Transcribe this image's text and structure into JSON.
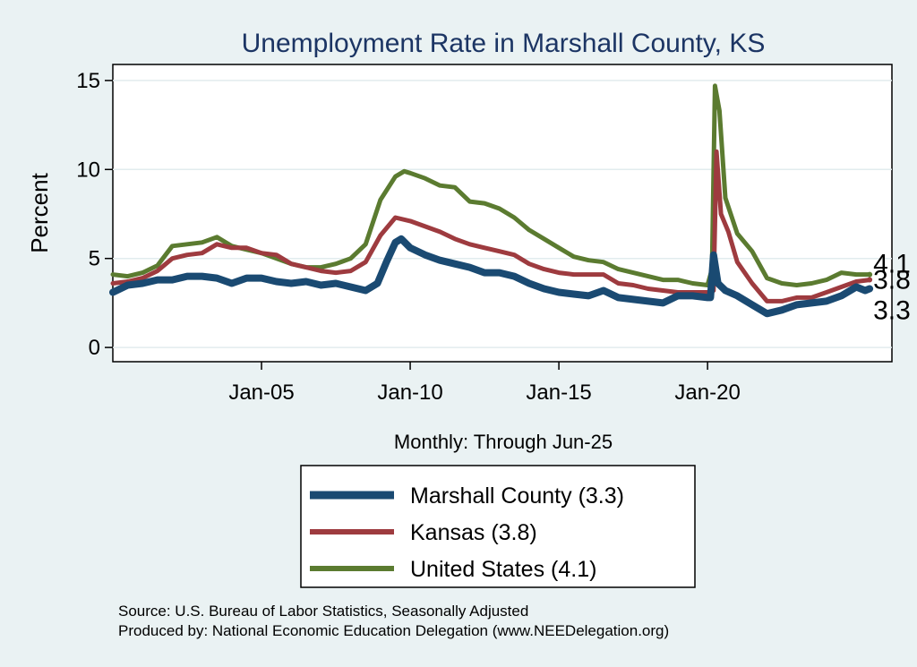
{
  "chart_data": {
    "type": "line",
    "title": "Unemployment Rate in Marshall  County, KS",
    "xlabel": "Monthly: Through Jun-25",
    "ylabel": "Percent",
    "ylim": [
      -0.8,
      15.9
    ],
    "xlim": [
      2000.0,
      2026.2
    ],
    "yticks": [
      0,
      5,
      10,
      15
    ],
    "xticks": [
      {
        "label": "Jan-05",
        "value": 2005
      },
      {
        "label": "Jan-10",
        "value": 2010
      },
      {
        "label": "Jan-15",
        "value": 2015
      },
      {
        "label": "Jan-20",
        "value": 2020
      }
    ],
    "grid": true,
    "legend_position": "bottom",
    "series": [
      {
        "name": "Marshall  County",
        "legend": "Marshall  County (3.3)",
        "end_label": "3.3",
        "color": "#1a4a72",
        "width": 8,
        "points": [
          [
            2000.0,
            3.1
          ],
          [
            2000.5,
            3.5
          ],
          [
            2001.0,
            3.6
          ],
          [
            2001.5,
            3.8
          ],
          [
            2002.0,
            3.8
          ],
          [
            2002.5,
            4.0
          ],
          [
            2003.0,
            4.0
          ],
          [
            2003.5,
            3.9
          ],
          [
            2004.0,
            3.6
          ],
          [
            2004.5,
            3.9
          ],
          [
            2005.0,
            3.9
          ],
          [
            2005.5,
            3.7
          ],
          [
            2006.0,
            3.6
          ],
          [
            2006.5,
            3.7
          ],
          [
            2007.0,
            3.5
          ],
          [
            2007.5,
            3.6
          ],
          [
            2008.0,
            3.4
          ],
          [
            2008.5,
            3.2
          ],
          [
            2008.9,
            3.6
          ],
          [
            2009.2,
            4.8
          ],
          [
            2009.5,
            5.9
          ],
          [
            2009.7,
            6.1
          ],
          [
            2010.0,
            5.6
          ],
          [
            2010.5,
            5.2
          ],
          [
            2011.0,
            4.9
          ],
          [
            2011.5,
            4.7
          ],
          [
            2012.0,
            4.5
          ],
          [
            2012.5,
            4.2
          ],
          [
            2013.0,
            4.2
          ],
          [
            2013.5,
            4.0
          ],
          [
            2014.0,
            3.6
          ],
          [
            2014.5,
            3.3
          ],
          [
            2015.0,
            3.1
          ],
          [
            2015.5,
            3.0
          ],
          [
            2016.0,
            2.9
          ],
          [
            2016.5,
            3.2
          ],
          [
            2017.0,
            2.8
          ],
          [
            2017.5,
            2.7
          ],
          [
            2018.0,
            2.6
          ],
          [
            2018.5,
            2.5
          ],
          [
            2019.0,
            2.9
          ],
          [
            2019.5,
            2.9
          ],
          [
            2020.0,
            2.8
          ],
          [
            2020.1,
            2.8
          ],
          [
            2020.2,
            5.2
          ],
          [
            2020.35,
            3.6
          ],
          [
            2020.6,
            3.2
          ],
          [
            2021.0,
            2.9
          ],
          [
            2021.5,
            2.4
          ],
          [
            2022.0,
            1.9
          ],
          [
            2022.5,
            2.1
          ],
          [
            2023.0,
            2.4
          ],
          [
            2023.5,
            2.5
          ],
          [
            2024.0,
            2.6
          ],
          [
            2024.5,
            2.9
          ],
          [
            2025.0,
            3.4
          ],
          [
            2025.3,
            3.2
          ],
          [
            2025.45,
            3.3
          ]
        ]
      },
      {
        "name": "Kansas",
        "legend": "Kansas (3.8)",
        "end_label": "3.8",
        "color": "#9e3b3f",
        "width": 5,
        "points": [
          [
            2000.0,
            3.6
          ],
          [
            2000.5,
            3.7
          ],
          [
            2001.0,
            3.9
          ],
          [
            2001.5,
            4.3
          ],
          [
            2002.0,
            5.0
          ],
          [
            2002.5,
            5.2
          ],
          [
            2003.0,
            5.3
          ],
          [
            2003.5,
            5.8
          ],
          [
            2004.0,
            5.6
          ],
          [
            2004.5,
            5.6
          ],
          [
            2005.0,
            5.3
          ],
          [
            2005.5,
            5.2
          ],
          [
            2006.0,
            4.7
          ],
          [
            2006.5,
            4.5
          ],
          [
            2007.0,
            4.3
          ],
          [
            2007.5,
            4.2
          ],
          [
            2008.0,
            4.3
          ],
          [
            2008.5,
            4.8
          ],
          [
            2009.0,
            6.3
          ],
          [
            2009.5,
            7.3
          ],
          [
            2010.0,
            7.1
          ],
          [
            2010.5,
            6.8
          ],
          [
            2011.0,
            6.5
          ],
          [
            2011.5,
            6.1
          ],
          [
            2012.0,
            5.8
          ],
          [
            2012.5,
            5.6
          ],
          [
            2013.0,
            5.4
          ],
          [
            2013.5,
            5.2
          ],
          [
            2014.0,
            4.7
          ],
          [
            2014.5,
            4.4
          ],
          [
            2015.0,
            4.2
          ],
          [
            2015.5,
            4.1
          ],
          [
            2016.0,
            4.1
          ],
          [
            2016.5,
            4.1
          ],
          [
            2017.0,
            3.6
          ],
          [
            2017.5,
            3.5
          ],
          [
            2018.0,
            3.3
          ],
          [
            2018.5,
            3.2
          ],
          [
            2019.0,
            3.1
          ],
          [
            2019.5,
            3.1
          ],
          [
            2020.0,
            3.1
          ],
          [
            2020.2,
            3.2
          ],
          [
            2020.3,
            11.0
          ],
          [
            2020.45,
            7.5
          ],
          [
            2020.7,
            6.5
          ],
          [
            2021.0,
            4.8
          ],
          [
            2021.5,
            3.6
          ],
          [
            2022.0,
            2.6
          ],
          [
            2022.5,
            2.6
          ],
          [
            2023.0,
            2.8
          ],
          [
            2023.5,
            2.8
          ],
          [
            2024.0,
            3.1
          ],
          [
            2024.5,
            3.4
          ],
          [
            2025.0,
            3.7
          ],
          [
            2025.45,
            3.8
          ]
        ]
      },
      {
        "name": "United States",
        "legend": "United States (4.1)",
        "end_label": "4.1",
        "color": "#5b7b30",
        "width": 5,
        "points": [
          [
            2000.0,
            4.1
          ],
          [
            2000.5,
            4.0
          ],
          [
            2001.0,
            4.2
          ],
          [
            2001.5,
            4.6
          ],
          [
            2002.0,
            5.7
          ],
          [
            2002.5,
            5.8
          ],
          [
            2003.0,
            5.9
          ],
          [
            2003.5,
            6.2
          ],
          [
            2004.0,
            5.7
          ],
          [
            2004.5,
            5.5
          ],
          [
            2005.0,
            5.3
          ],
          [
            2005.5,
            5.0
          ],
          [
            2006.0,
            4.7
          ],
          [
            2006.5,
            4.5
          ],
          [
            2007.0,
            4.5
          ],
          [
            2007.5,
            4.7
          ],
          [
            2008.0,
            5.0
          ],
          [
            2008.5,
            5.8
          ],
          [
            2009.0,
            8.3
          ],
          [
            2009.5,
            9.6
          ],
          [
            2009.8,
            9.9
          ],
          [
            2010.0,
            9.8
          ],
          [
            2010.5,
            9.5
          ],
          [
            2011.0,
            9.1
          ],
          [
            2011.5,
            9.0
          ],
          [
            2012.0,
            8.2
          ],
          [
            2012.5,
            8.1
          ],
          [
            2013.0,
            7.8
          ],
          [
            2013.5,
            7.3
          ],
          [
            2014.0,
            6.6
          ],
          [
            2014.5,
            6.1
          ],
          [
            2015.0,
            5.6
          ],
          [
            2015.5,
            5.1
          ],
          [
            2016.0,
            4.9
          ],
          [
            2016.5,
            4.8
          ],
          [
            2017.0,
            4.4
          ],
          [
            2017.5,
            4.2
          ],
          [
            2018.0,
            4.0
          ],
          [
            2018.5,
            3.8
          ],
          [
            2019.0,
            3.8
          ],
          [
            2019.5,
            3.6
          ],
          [
            2020.0,
            3.5
          ],
          [
            2020.15,
            4.4
          ],
          [
            2020.25,
            14.7
          ],
          [
            2020.4,
            13.3
          ],
          [
            2020.6,
            8.4
          ],
          [
            2021.0,
            6.4
          ],
          [
            2021.5,
            5.4
          ],
          [
            2022.0,
            3.9
          ],
          [
            2022.5,
            3.6
          ],
          [
            2023.0,
            3.5
          ],
          [
            2023.5,
            3.6
          ],
          [
            2024.0,
            3.8
          ],
          [
            2024.5,
            4.2
          ],
          [
            2025.0,
            4.1
          ],
          [
            2025.45,
            4.1
          ]
        ]
      }
    ],
    "annotations": {
      "source": "Source: U.S. Bureau of Labor Statistics, Seasonally Adjusted",
      "produced": "Produced by: National Economic Education Delegation (www.NEEDelegation.org)"
    }
  }
}
